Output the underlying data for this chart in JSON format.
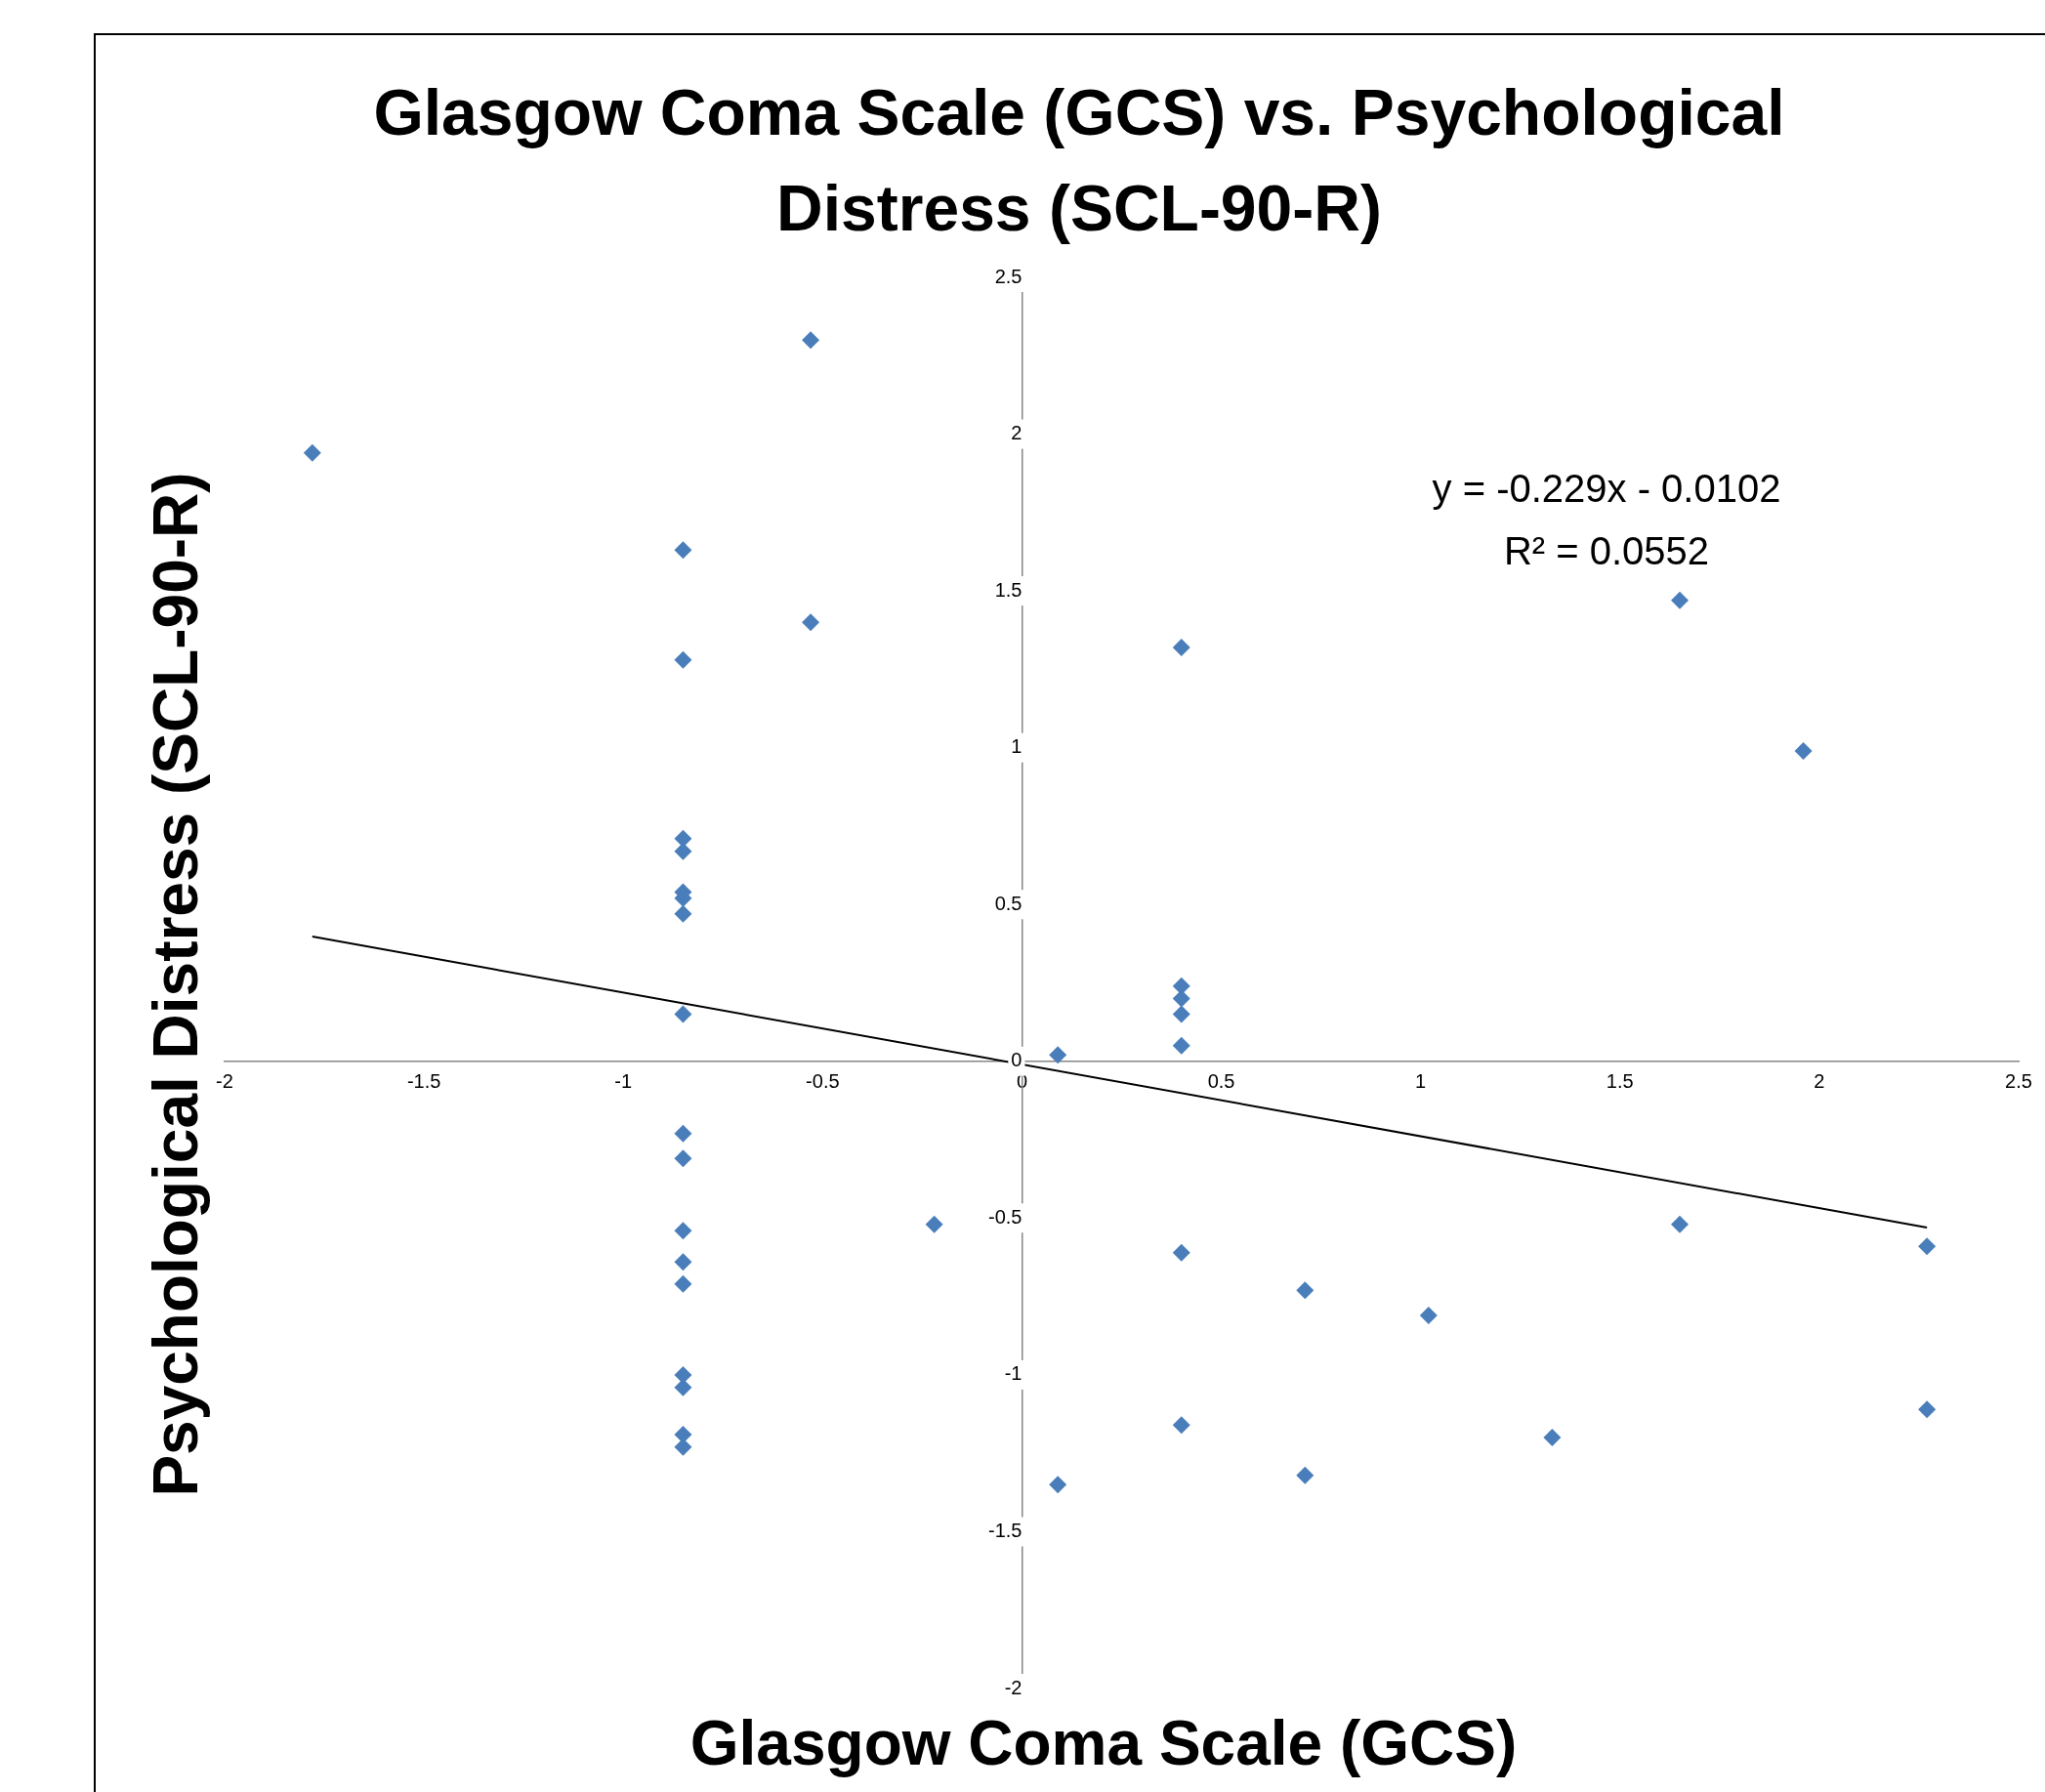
{
  "chart_data": {
    "type": "scatter",
    "title": "Glasgow Coma Scale (GCS) vs. Psychological Distress (SCL-90-R)",
    "xlabel": "Glasgow Coma Scale (GCS)",
    "ylabel": "Psychological Distress (SCL-90-R)",
    "xlim": [
      -2,
      2.5
    ],
    "xticks": [
      -2,
      -1.5,
      -1,
      -0.5,
      0,
      0.5,
      1,
      1.5,
      2,
      2.5
    ],
    "ylim": [
      -2,
      2.5
    ],
    "yticks": [
      -2,
      -1.5,
      -1,
      -0.5,
      0,
      0.5,
      1,
      1.5,
      2,
      2.5
    ],
    "grid": false,
    "legend": false,
    "marker": "diamond",
    "annotations": [
      "y = -0.229x - 0.0102",
      "R² = 0.0552"
    ],
    "series": [
      {
        "color": "#4a7ebb",
        "x": [
          -1.78,
          -0.53,
          -0.85,
          -0.53,
          -0.85,
          -0.85,
          -0.85,
          -0.85,
          -0.85,
          -0.85,
          -0.85,
          -0.85,
          -0.85,
          -0.85,
          -0.85,
          -0.85,
          -0.85,
          -0.85,
          -0.85,
          -0.85,
          -0.22,
          0.09,
          0.09,
          0.4,
          0.4,
          0.4,
          0.4,
          0.4,
          0.4,
          0.4,
          0.71,
          0.71,
          1.02,
          1.33,
          1.65,
          1.65,
          1.96,
          2.27,
          2.27
        ],
        "values": [
          1.94,
          2.3,
          1.63,
          1.4,
          1.28,
          0.71,
          0.67,
          0.54,
          0.52,
          0.47,
          0.15,
          -0.23,
          -0.31,
          -0.54,
          -0.64,
          -0.71,
          -1.0,
          -1.04,
          -1.19,
          -1.23,
          -0.52,
          0.02,
          -1.35,
          1.32,
          0.24,
          0.2,
          0.15,
          0.05,
          -0.61,
          -1.16,
          -0.73,
          -1.32,
          -0.81,
          -1.2,
          1.47,
          -0.52,
          0.99,
          -0.59,
          -1.11
        ]
      },
      {
        "type": "line",
        "color": "#000000",
        "marker": "none",
        "x": [
          -1.78,
          2.27
        ],
        "values": [
          0.398,
          -0.53
        ]
      }
    ]
  }
}
